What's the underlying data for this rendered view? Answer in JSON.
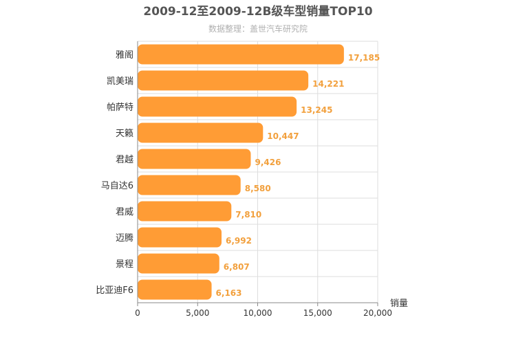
{
  "chart_data": {
    "type": "bar",
    "orientation": "horizontal",
    "title": "2009-12至2009-12B级车型销量TOP10",
    "subtitle": "数据整理：盖世汽车研究院",
    "xlabel": "销量",
    "categories": [
      "雅阁",
      "凯美瑞",
      "帕萨特",
      "天籁",
      "君越",
      "马自达6",
      "君威",
      "迈腾",
      "景程",
      "比亚迪F6"
    ],
    "values": [
      17185,
      14221,
      13245,
      10447,
      9426,
      8580,
      7810,
      6992,
      6807,
      6163
    ],
    "value_labels": [
      "17,185",
      "14,221",
      "13,245",
      "10,447",
      "9,426",
      "8,580",
      "7,810",
      "6,992",
      "6,807",
      "6,163"
    ],
    "xlim": [
      0,
      20000
    ],
    "xticks": [
      0,
      5000,
      10000,
      15000,
      20000
    ],
    "xtick_labels": [
      "0",
      "5,000",
      "10,000",
      "15,000",
      "20,000"
    ],
    "grid": true,
    "bar_color": "#ff9c35"
  }
}
